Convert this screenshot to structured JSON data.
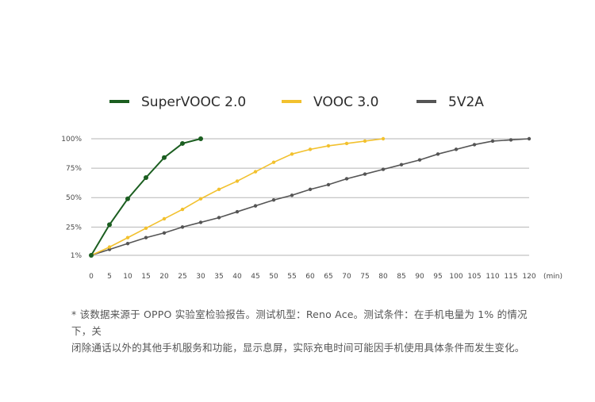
{
  "chart_data": {
    "type": "line",
    "x_ticks": [
      "0",
      "5",
      "10",
      "15",
      "20",
      "25",
      "30",
      "35",
      "40",
      "45",
      "50",
      "55",
      "60",
      "65",
      "70",
      "75",
      "80",
      "85",
      "90",
      "95",
      "100",
      "105",
      "110",
      "115",
      "120"
    ],
    "x_unit": "(min)",
    "y_ticks": [
      {
        "value": 1,
        "label": "1%"
      },
      {
        "value": 25,
        "label": "25%"
      },
      {
        "value": 50,
        "label": "50%"
      },
      {
        "value": 75,
        "label": "75%"
      },
      {
        "value": 100,
        "label": "100%"
      }
    ],
    "xlim": [
      0,
      120
    ],
    "ylim": [
      1,
      100
    ],
    "grid": "horizontal",
    "legend_position": "top",
    "series": [
      {
        "name": "SuperVOOC 2.0",
        "color": "#1b5e20",
        "x": [
          0,
          5,
          10,
          15,
          20,
          25,
          30
        ],
        "y": [
          1,
          27,
          49,
          67,
          84,
          96,
          100
        ]
      },
      {
        "name": "VOOC 3.0",
        "color": "#f2c12e",
        "x": [
          0,
          5,
          10,
          15,
          20,
          25,
          30,
          35,
          40,
          45,
          50,
          55,
          60,
          65,
          70,
          75,
          80
        ],
        "y": [
          1,
          8,
          16,
          24,
          32,
          40,
          49,
          57,
          64,
          72,
          80,
          87,
          91,
          94,
          96,
          98,
          100
        ]
      },
      {
        "name": "5V2A",
        "color": "#555555",
        "x": [
          0,
          5,
          10,
          15,
          20,
          25,
          30,
          35,
          40,
          45,
          50,
          55,
          60,
          65,
          70,
          75,
          80,
          85,
          90,
          95,
          100,
          105,
          110,
          115,
          120
        ],
        "y": [
          1,
          6,
          11,
          16,
          20,
          25,
          29,
          33,
          38,
          43,
          48,
          52,
          57,
          61,
          66,
          70,
          74,
          78,
          82,
          87,
          91,
          95,
          98,
          99,
          100
        ]
      }
    ]
  },
  "note": {
    "line1": "* 该数据来源于 OPPO 实验室检验报告。测试机型：Reno Ace。测试条件：在手机电量为 1% 的情况下，关",
    "line2": "闭除通话以外的其他手机服务和功能，显示息屏，实际充电时间可能因手机使用具体条件而发生变化。"
  }
}
